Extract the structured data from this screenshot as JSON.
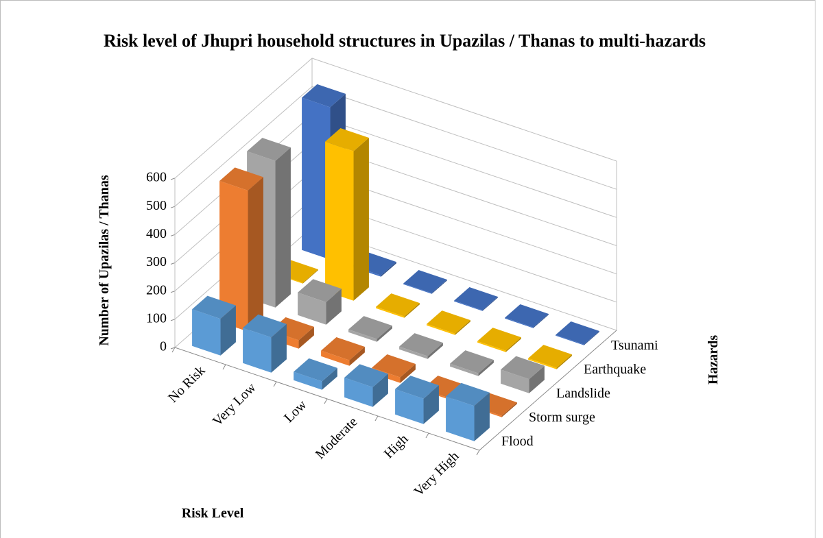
{
  "chart_data": {
    "type": "bar3d",
    "title": "Risk level of Jhupri household structures in Upazilas / Thanas to multi-hazards",
    "x_label": "Risk Level",
    "y_label": "Number of Upazilas / Thanas",
    "z_label": "Hazards",
    "categories": [
      "No Risk",
      "Very Low",
      "Low",
      "Moderate",
      "High",
      "Very High"
    ],
    "series": [
      {
        "name": "Flood",
        "color": "#5b9bd5",
        "values": [
          130,
          125,
          30,
          70,
          90,
          125
        ]
      },
      {
        "name": "Storm surge",
        "color": "#ed7d31",
        "values": [
          500,
          30,
          20,
          20,
          5,
          5
        ]
      },
      {
        "name": "Landslide",
        "color": "#a5a5a5",
        "values": [
          520,
          80,
          10,
          10,
          10,
          50
        ]
      },
      {
        "name": "Earthquake",
        "color": "#ffc000",
        "values": [
          3,
          530,
          5,
          5,
          5,
          5
        ]
      },
      {
        "name": "Tsunami",
        "color": "#4472c4",
        "values": [
          540,
          5,
          3,
          3,
          3,
          3
        ]
      }
    ],
    "ylim": [
      0,
      600
    ],
    "yticks": [
      0,
      100,
      200,
      300,
      400,
      500,
      600
    ],
    "grid": true
  }
}
